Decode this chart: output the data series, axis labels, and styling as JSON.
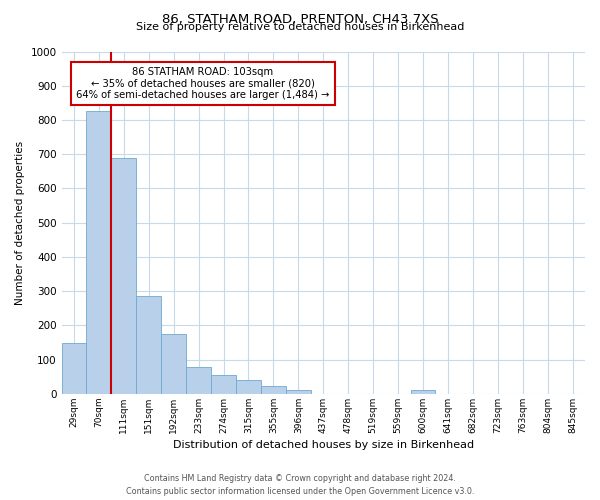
{
  "title": "86, STATHAM ROAD, PRENTON, CH43 7XS",
  "subtitle": "Size of property relative to detached houses in Birkenhead",
  "xlabel": "Distribution of detached houses by size in Birkenhead",
  "ylabel": "Number of detached properties",
  "bin_labels": [
    "29sqm",
    "70sqm",
    "111sqm",
    "151sqm",
    "192sqm",
    "233sqm",
    "274sqm",
    "315sqm",
    "355sqm",
    "396sqm",
    "437sqm",
    "478sqm",
    "519sqm",
    "559sqm",
    "600sqm",
    "641sqm",
    "682sqm",
    "723sqm",
    "763sqm",
    "804sqm",
    "845sqm"
  ],
  "bar_values": [
    150,
    825,
    690,
    285,
    175,
    80,
    55,
    40,
    22,
    10,
    0,
    0,
    0,
    0,
    10,
    0,
    0,
    0,
    0,
    0,
    0
  ],
  "bar_color": "#b8d0ea",
  "bar_edge_color": "#6fa8d0",
  "vline_color": "#cc0000",
  "vline_x_idx": 2,
  "annotation_text": "86 STATHAM ROAD: 103sqm\n← 35% of detached houses are smaller (820)\n64% of semi-detached houses are larger (1,484) →",
  "annotation_box_color": "#ffffff",
  "annotation_box_edge": "#cc0000",
  "ylim": [
    0,
    1000
  ],
  "yticks": [
    0,
    100,
    200,
    300,
    400,
    500,
    600,
    700,
    800,
    900,
    1000
  ],
  "footer_line1": "Contains HM Land Registry data © Crown copyright and database right 2024.",
  "footer_line2": "Contains public sector information licensed under the Open Government Licence v3.0.",
  "bg_color": "#ffffff",
  "grid_color": "#c8daea"
}
